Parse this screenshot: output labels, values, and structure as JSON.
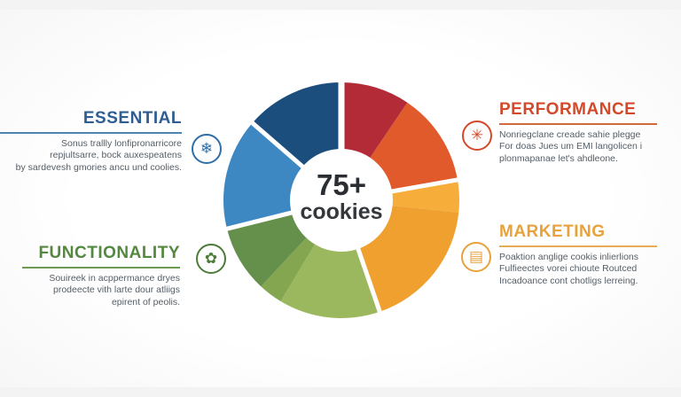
{
  "page": {
    "center_value": "75+",
    "center_label": "cookies"
  },
  "blocks": {
    "essential": {
      "title": "ESSENTIAL",
      "lines": [
        "Sonus trallly lonfipronarricore",
        "repjultsarre, bock auxespeatens",
        "by sardevesh gmories ancu und coolies."
      ]
    },
    "performance": {
      "title": "PERFORMANCE",
      "lines": [
        "Nonriegclane creade sahie plegge",
        "For doas Jues um EMI langolicen i",
        "plonmapanae let's ahdleone."
      ]
    },
    "functionality": {
      "title": "FUNCTIONALITY",
      "lines": [
        "Souireek in acppermance dryes",
        "prodeecte vith larte dour atliigs",
        "epirent of peolis."
      ]
    },
    "marketing": {
      "title": "MARKETING",
      "lines": [
        "Poaktion anglige cookis inlierlions",
        "Fulfieectes vorei chioute Routced",
        "Incadoance cont chotligs lerreing."
      ]
    }
  },
  "icons": {
    "essential": {
      "name": "snowflake-icon",
      "glyph": "❄"
    },
    "performance": {
      "name": "starburst-icon",
      "glyph": "✳"
    },
    "functionality": {
      "name": "flower-icon",
      "glyph": "✿"
    },
    "marketing": {
      "name": "books-icon",
      "glyph": "▤"
    }
  },
  "colors": {
    "essential_heading": "#2e5d92",
    "performance_heading": "#d3492a",
    "functionality_heading": "#55883f",
    "marketing_heading": "#e8a23c",
    "body_text": "#545e67",
    "center_text": "#2a2e33"
  },
  "chart_data": {
    "type": "pie",
    "title": "Cookie categories donut",
    "center_label": "75+ cookies",
    "legend_position": "none",
    "inner_radius_ratio": 0.43,
    "categories": [
      "Essential",
      "Performance",
      "Marketing",
      "Functionality"
    ],
    "approx_share_pct": [
      29,
      22,
      23,
      26
    ],
    "segments": [
      {
        "category": "Performance",
        "tone": "dark-red",
        "color": "#b22b36",
        "start": 0,
        "end": 34
      },
      {
        "category": "Performance",
        "tone": "vermilion",
        "color": "#e05a2b",
        "start": 34,
        "end": 80
      },
      {
        "category": "Marketing",
        "tone": "light-amber",
        "color": "#f6ad39",
        "start": 80,
        "end": 96
      },
      {
        "category": "Marketing",
        "tone": "amber",
        "color": "#f0a02f",
        "start": 96,
        "end": 161
      },
      {
        "category": "Functionality",
        "tone": "light-green",
        "color": "#9cb85e",
        "start": 161,
        "end": 211
      },
      {
        "category": "Functionality",
        "tone": "mid-green",
        "color": "#85a651",
        "start": 211,
        "end": 223
      },
      {
        "category": "Functionality",
        "tone": "dark-green",
        "color": "#64904b",
        "start": 223,
        "end": 256
      },
      {
        "category": "Essential",
        "tone": "blue",
        "color": "#3d87c2",
        "start": 256,
        "end": 311
      },
      {
        "category": "Essential",
        "tone": "navy",
        "color": "#1c4e7d",
        "start": 311,
        "end": 360
      }
    ],
    "gap_angles": [
      0,
      80,
      161,
      256,
      311
    ]
  }
}
